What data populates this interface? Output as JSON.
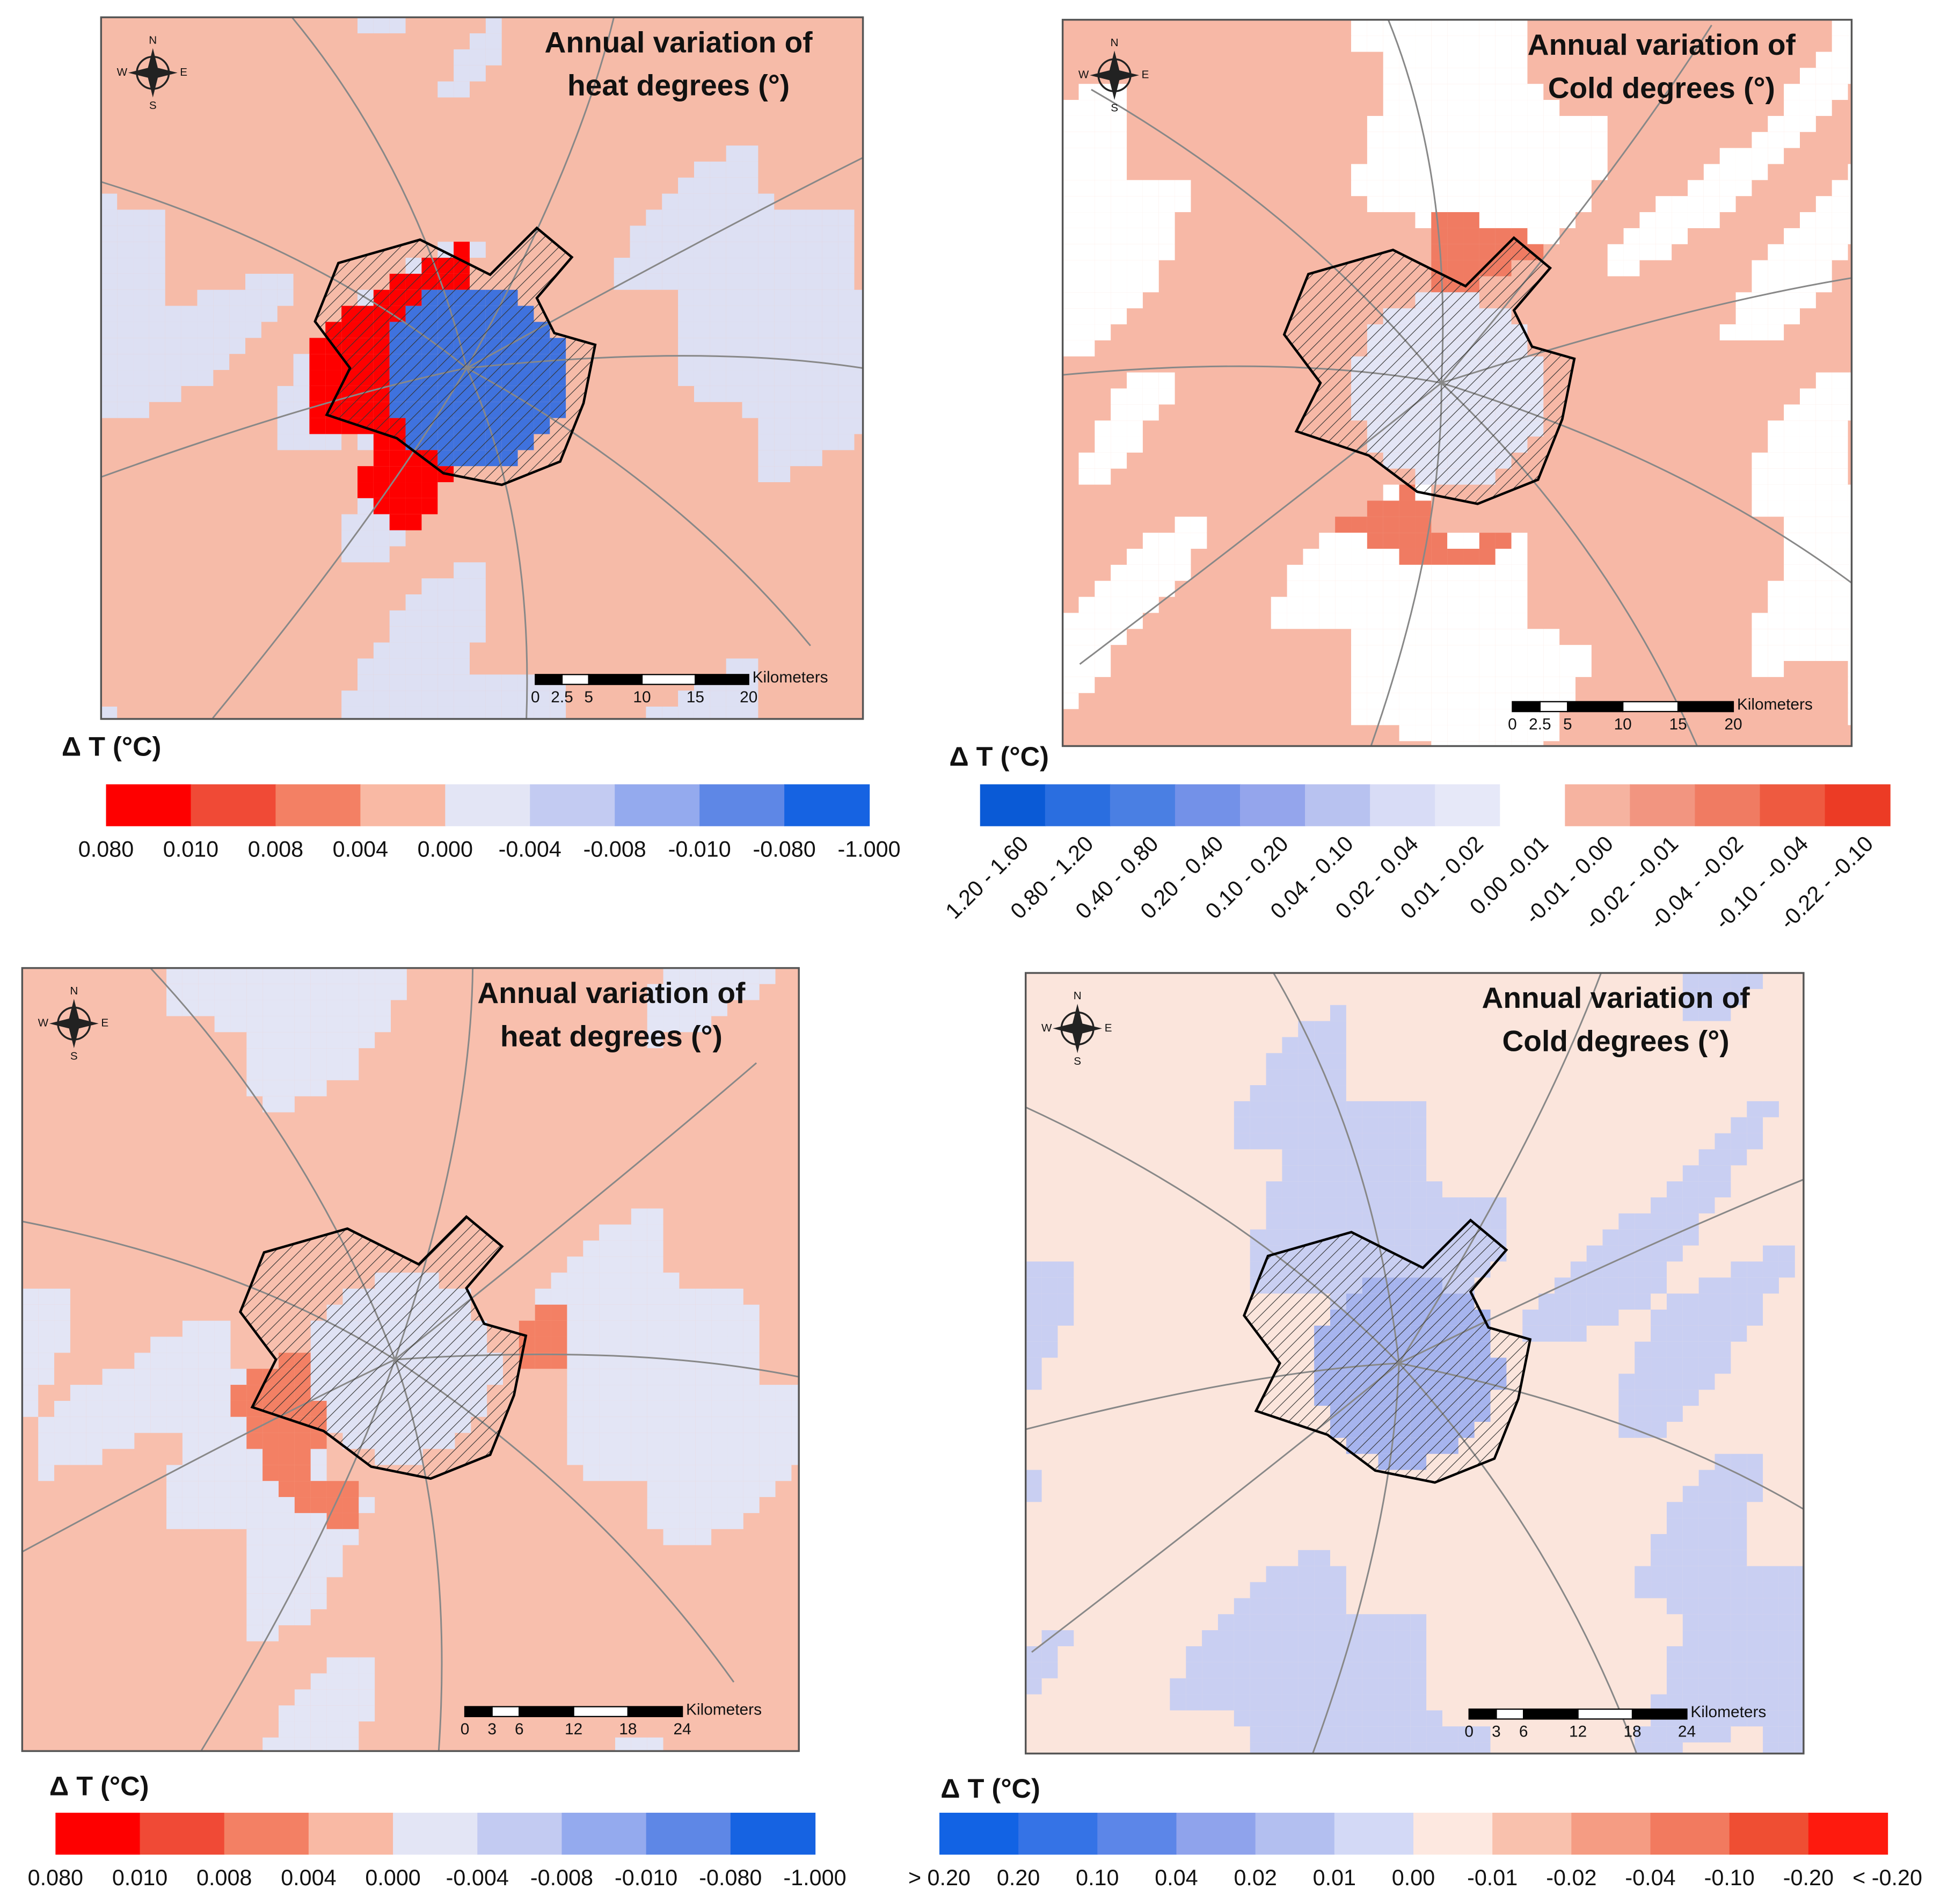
{
  "panels": [
    {
      "title": [
        "Annual variation of",
        "heat degrees (°)"
      ],
      "compass": [
        "N",
        "S",
        "E",
        "W"
      ],
      "scale_labels": [
        "0",
        "2.5",
        "5",
        "10",
        "15",
        "20"
      ],
      "scale_unit": "Kilometers",
      "legend": {
        "title": "Δ T (°C)",
        "labels": [
          "0.080",
          "0.010",
          "0.008",
          "0.004",
          "0.000",
          "-0.004",
          "-0.008",
          "-0.010",
          "-0.080",
          "-1.000"
        ],
        "colors": [
          "#fe0000",
          "#f04a36",
          "#f38064",
          "#f9b9a4",
          "#e3e5f5",
          "#c3cbf2",
          "#94aaee",
          "#5e87e6",
          "#1663e2"
        ]
      }
    },
    {
      "title": [
        "Annual variation of",
        "Cold degrees (°)"
      ],
      "compass": [
        "N",
        "S",
        "E",
        "W"
      ],
      "scale_labels": [
        "0",
        "2.5",
        "5",
        "10",
        "15",
        "20"
      ],
      "scale_unit": "Kilometers",
      "legend": {
        "title": "Δ T (°C)",
        "labels": [
          "1.20 - 1.60",
          "0.80 - 1.20",
          "0.40 - 0.80",
          "0.20 - 0.40",
          "0.10 - 0.20",
          "0.04 - 0.10",
          "0.02 - 0.04",
          "0.01 - 0.02",
          "0.00 -0.01",
          "-0.01 - 0.00",
          "-0.02 - -0.01",
          "-0.04 - -0.02",
          "-0.10 - -0.04",
          "-0.22 - -0.10"
        ],
        "colors": [
          "#0a5ad6",
          "#2a6ee0",
          "#4a7fe3",
          "#7391e8",
          "#94a5ec",
          "#b8c2f0",
          "#d8dcf6",
          "#e6e8f8",
          "#ffffff",
          "#f6b3a0",
          "#f29580",
          "#f07b62",
          "#ee5a40",
          "#ec3b25"
        ]
      }
    },
    {
      "title": [
        "Annual variation of",
        "heat degrees (°)"
      ],
      "compass": [
        "N",
        "S",
        "E",
        "W"
      ],
      "scale_labels": [
        "0",
        "3",
        "6",
        "12",
        "18",
        "24"
      ],
      "scale_unit": "Kilometers",
      "legend": {
        "title": "Δ T (°C)",
        "labels": [
          "0.080",
          "0.010",
          "0.008",
          "0.004",
          "0.000",
          "-0.004",
          "-0.008",
          "-0.010",
          "-0.080",
          "-1.000"
        ],
        "colors": [
          "#fe0000",
          "#f04a36",
          "#f38064",
          "#f9b9a4",
          "#e3e5f5",
          "#c3cbf2",
          "#94aaee",
          "#5e87e6",
          "#1663e2"
        ]
      }
    },
    {
      "title": [
        "Annual variation of",
        "Cold degrees (°)"
      ],
      "compass": [
        "N",
        "S",
        "E",
        "W"
      ],
      "scale_labels": [
        "0",
        "3",
        "6",
        "12",
        "18",
        "24"
      ],
      "scale_unit": "Kilometers",
      "legend": {
        "title": "Δ T (°C)",
        "labels": [
          "> 0.20",
          "0.20",
          "0.10",
          "0.04",
          "0.02",
          "0.01",
          "0.00",
          "-0.01",
          "-0.02",
          "-0.04",
          "-0.10",
          "-0.20",
          "< -0.20"
        ],
        "colors": [
          "#1263e4",
          "#3573e6",
          "#5c86e8",
          "#8fa3ec",
          "#b3bff0",
          "#d3d9f6",
          "#fde8e0",
          "#f9c1ad",
          "#f59c83",
          "#f27a5f",
          "#ef4e33",
          "#fe1a0e"
        ]
      }
    }
  ]
}
